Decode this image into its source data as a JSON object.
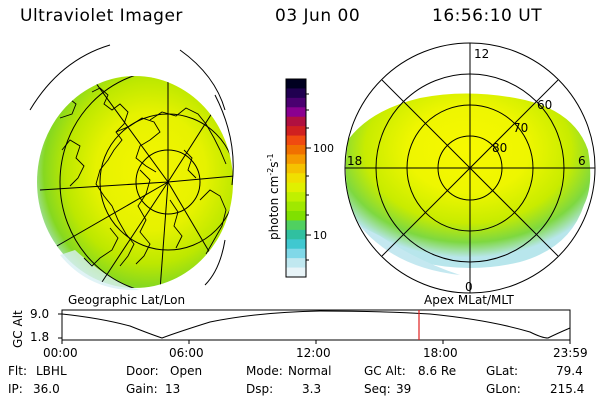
{
  "header": {
    "instrument": "Ultraviolet Imager",
    "date": "03 Jun 00",
    "time": "16:56:10 UT"
  },
  "left_panel": {
    "caption": "Geographic Lat/Lon"
  },
  "right_panel": {
    "caption": "Apex MLat/MLT",
    "mlt_labels": {
      "top": "12",
      "left": "18",
      "right": "6",
      "bottom": "0"
    },
    "mlat_labels": [
      "60",
      "70",
      "80"
    ]
  },
  "colorbar": {
    "unit_label": "photon cm",
    "unit_exp1": "-2",
    "unit_s": "s",
    "unit_exp2": "-1",
    "tick_labels": [
      "100",
      "10"
    ],
    "colors": [
      "#000020",
      "#200050",
      "#4a0070",
      "#8a0090",
      "#b01040",
      "#d02020",
      "#f04a10",
      "#f07000",
      "#f59a00",
      "#f5c200",
      "#f0e000",
      "#e0f000",
      "#c0f000",
      "#a0e800",
      "#80e000",
      "#50d060",
      "#30c0a0",
      "#40c8d0",
      "#80d8e8",
      "#c0e8f0",
      "#e8f4f8"
    ]
  },
  "altitude_plot": {
    "ylabel": "GC Alt",
    "y_ticks": [
      "9.0",
      "1.8"
    ],
    "x_ticks": [
      "00:00",
      "06:00",
      "12:00",
      "18:00",
      "23:59"
    ],
    "current_time_color": "#e02020"
  },
  "info": {
    "flt_label": "Flt:",
    "flt_value": "LBHL",
    "ip_label": "IP:",
    "ip_value": "36.0",
    "door_label": "Door:",
    "door_value": "Open",
    "gain_label": "Gain:",
    "gain_value": "13",
    "mode_label": "Mode:",
    "mode_value": "Normal",
    "dsp_label": "Dsp:",
    "dsp_value": "3.3",
    "gcalt_label": "GC Alt:",
    "gcalt_value": "8.6 Re",
    "seq_label": "Seq:",
    "seq_value": "39",
    "glat_label": "GLat:",
    "glat_value": "79.4",
    "glon_label": "GLon:",
    "glon_value": "215.4"
  }
}
